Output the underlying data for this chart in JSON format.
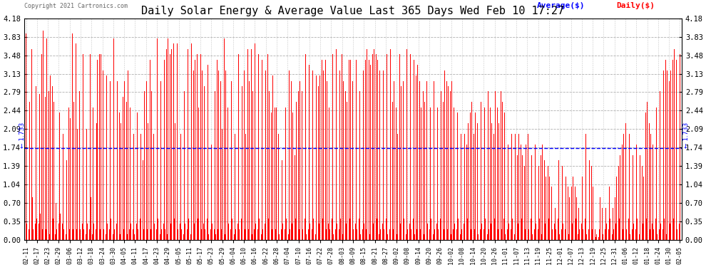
{
  "title": "Daily Solar Energy & Average Value Last 365 Days Wed Feb 10 17:27",
  "copyright": "Copyright 2021 Cartronics.com",
  "average_value": 1.733,
  "average_label": "1.733",
  "y_ticks": [
    0.0,
    0.35,
    0.7,
    1.04,
    1.39,
    1.74,
    2.09,
    2.44,
    2.79,
    3.13,
    3.48,
    3.83,
    4.18
  ],
  "ylim": [
    0.0,
    4.18
  ],
  "bar_color": "#ff0000",
  "avg_line_color": "#0000ff",
  "avg_line_style": "--",
  "background_color": "#ffffff",
  "grid_color": "#b0b0b0",
  "title_fontsize": 11,
  "legend_avg_color": "#0000ff",
  "legend_daily_color": "#ff0000",
  "x_tick_labels": [
    "02-11",
    "02-17",
    "02-23",
    "02-29",
    "03-06",
    "03-12",
    "03-18",
    "03-24",
    "03-30",
    "04-05",
    "04-11",
    "04-17",
    "04-23",
    "04-29",
    "05-05",
    "05-11",
    "05-17",
    "05-23",
    "05-29",
    "06-04",
    "06-10",
    "06-16",
    "06-22",
    "06-28",
    "07-04",
    "07-10",
    "07-16",
    "07-22",
    "07-28",
    "08-03",
    "08-09",
    "08-15",
    "08-21",
    "08-27",
    "09-02",
    "09-08",
    "09-14",
    "09-20",
    "09-26",
    "10-02",
    "10-08",
    "10-14",
    "10-20",
    "10-26",
    "11-01",
    "11-07",
    "11-13",
    "11-19",
    "11-25",
    "12-01",
    "12-07",
    "12-13",
    "12-19",
    "12-25",
    "12-31",
    "01-06",
    "01-12",
    "01-18",
    "01-24",
    "01-30",
    "02-05"
  ],
  "daily_values": [
    3.9,
    0.3,
    3.83,
    0.2,
    2.6,
    0.1,
    3.6,
    0.8,
    0.2,
    3.7,
    0.3,
    2.9,
    0.4,
    3.55,
    0.3,
    2.75,
    0.5,
    3.5,
    0.2,
    3.95,
    0.3,
    2.7,
    0.2,
    3.8,
    0.3,
    2.8,
    0.1,
    3.1,
    0.2,
    2.9,
    0.4,
    2.6,
    0.1,
    0.7,
    0.2,
    2.3,
    0.3,
    2.4,
    0.5,
    1.2,
    0.3,
    2.0,
    0.2,
    3.8,
    0.1,
    1.5,
    0.3,
    2.5,
    0.2,
    2.3,
    0.4,
    3.9,
    0.2,
    2.6,
    0.3,
    3.7,
    0.2,
    2.1,
    0.4,
    2.8,
    0.2,
    3.0,
    0.3,
    3.5,
    0.2,
    4.1,
    0.1,
    2.1,
    0.3,
    3.2,
    0.2,
    3.5,
    0.8,
    0.1,
    2.5,
    0.3,
    3.6,
    0.2,
    2.2,
    3.4,
    0.1,
    3.5,
    0.2,
    3.5,
    0.3,
    3.2,
    0.2,
    1.7,
    0.1,
    3.1,
    0.3,
    3.6,
    0.2,
    3.0,
    0.4,
    1.5,
    0.1,
    3.8,
    0.2,
    3.6,
    0.3,
    3.0,
    0.2,
    2.4,
    0.1,
    2.2,
    0.3,
    2.7,
    0.2,
    3.0,
    0.4,
    2.6,
    0.1,
    3.2,
    0.2,
    2.5,
    0.3,
    3.0,
    0.2,
    2.0,
    0.1,
    3.0,
    0.3,
    2.4,
    0.2,
    2.8,
    0.4,
    2.0,
    0.1,
    1.5,
    0.2,
    2.8,
    0.3,
    3.0,
    0.2,
    2.2,
    0.4,
    3.4,
    0.2,
    2.8,
    0.1,
    2.0,
    0.3,
    3.6,
    0.2,
    3.8,
    0.4,
    2.8,
    0.1,
    3.0,
    0.2,
    2.8,
    0.3,
    3.4,
    0.2,
    3.6,
    0.1,
    3.8,
    0.2,
    3.5,
    0.3,
    3.6,
    0.2,
    3.7,
    0.4,
    2.2,
    0.1,
    3.7,
    0.2,
    3.4,
    0.3,
    2.0,
    0.2,
    1.6,
    0.1,
    2.8,
    0.3,
    3.0,
    0.2,
    3.6,
    0.4,
    3.5,
    0.1,
    3.7,
    0.2,
    3.2,
    0.3,
    3.4,
    0.2,
    3.5,
    0.4,
    2.5,
    0.1,
    3.5,
    0.2,
    3.2,
    0.3,
    2.9,
    0.2,
    3.5,
    0.4,
    3.3,
    0.1,
    3.1,
    0.2,
    1.8,
    0.3,
    2.9,
    0.2,
    2.8,
    0.1,
    3.4,
    0.2,
    3.2,
    0.3,
    3.0,
    0.2,
    2.1,
    0.4,
    3.8,
    0.1,
    3.2,
    0.2,
    2.5,
    0.3,
    3.8,
    0.2,
    3.0,
    0.4,
    2.6,
    0.1,
    2.0,
    0.2,
    2.8,
    0.3,
    3.5,
    0.2,
    3.1,
    0.4,
    2.9,
    0.1,
    3.2,
    0.2,
    2.0,
    0.3,
    3.6,
    0.2,
    3.0,
    0.4,
    3.6,
    0.1,
    2.8,
    0.2,
    3.7,
    0.3,
    3.2,
    0.2,
    3.5,
    0.4,
    3.2,
    0.1,
    3.4,
    0.2,
    3.7,
    0.3,
    3.2,
    0.2,
    3.5,
    0.4,
    2.8,
    0.1,
    2.4,
    0.2,
    3.1,
    0.3,
    2.5,
    0.2,
    2.5,
    0.4,
    2.0,
    0.1,
    2.0,
    0.2,
    1.5,
    0.3,
    2.0,
    0.2,
    2.5,
    0.4,
    2.8,
    0.1,
    3.2,
    0.2,
    3.0,
    0.3,
    2.4,
    0.2,
    1.6,
    0.4,
    2.6,
    0.1,
    2.8,
    0.2,
    3.0,
    0.3,
    2.8,
    0.2,
    3.4,
    0.4,
    3.5,
    0.1,
    3.0,
    0.2,
    3.3,
    0.3,
    3.0,
    0.2,
    3.2,
    0.4,
    3.5,
    0.1,
    3.1,
    0.2,
    2.9,
    0.3,
    3.1,
    0.2,
    3.4,
    0.4,
    3.2,
    0.1,
    3.4,
    0.2,
    3.0,
    0.3,
    2.5,
    0.2,
    3.6,
    0.4,
    3.5,
    0.1,
    3.4,
    0.2,
    3.6,
    0.3,
    3.4,
    0.2,
    3.2,
    0.4,
    3.5,
    0.1,
    3.0,
    0.2,
    2.8,
    0.3,
    2.6,
    0.2,
    3.4,
    0.4,
    3.4,
    0.1,
    3.0,
    0.2,
    3.6,
    0.3,
    3.4,
    0.2,
    3.5,
    0.4,
    2.8,
    0.1,
    3.0,
    0.2,
    3.2,
    0.3,
    3.4,
    0.2,
    3.6,
    0.4,
    3.4,
    0.1,
    3.3,
    0.2,
    3.5,
    0.3,
    3.6,
    0.2,
    3.5,
    0.4,
    3.4,
    0.1,
    3.2,
    0.2,
    3.5,
    0.3,
    3.2,
    0.2,
    3.6,
    0.4,
    3.5,
    0.1,
    3.4,
    0.2,
    3.6,
    0.3,
    2.6,
    0.2,
    3.0,
    0.4,
    2.5,
    0.1,
    2.0,
    0.2,
    3.5,
    0.3,
    2.9,
    0.2,
    3.0,
    0.4,
    2.5,
    0.1,
    3.6,
    0.2,
    3.4,
    0.3,
    3.5,
    0.2,
    3.2,
    0.4,
    3.4,
    0.1,
    3.1,
    0.2,
    3.3,
    0.3,
    3.0,
    0.2,
    2.5,
    0.4,
    2.8,
    0.1,
    2.6,
    0.2,
    3.0,
    0.3,
    2.8,
    0.2,
    2.5,
    0.4,
    2.0,
    0.1,
    3.0,
    0.2,
    2.8,
    0.3,
    2.5,
    0.2,
    3.0,
    0.4,
    2.8,
    0.1,
    2.6,
    0.2,
    3.2,
    0.3,
    3.0,
    0.2,
    2.9,
    0.4,
    2.8,
    0.1,
    3.0,
    0.2,
    2.5,
    0.3,
    2.2,
    0.2,
    2.4,
    0.4,
    2.2,
    0.1,
    2.0,
    0.2,
    2.6,
    0.3,
    2.0,
    0.2,
    1.8,
    0.4,
    2.2,
    0.1,
    2.4,
    0.2,
    2.6,
    0.3,
    2.0,
    0.2,
    2.4,
    0.4,
    2.2,
    0.1,
    2.8,
    0.2,
    2.6,
    0.3,
    2.8,
    0.2,
    2.5,
    0.4,
    3.0,
    0.1,
    2.8,
    0.2,
    2.5,
    0.3,
    2.2,
    0.2,
    2.0,
    0.4,
    2.8,
    0.1,
    2.5,
    0.2,
    2.2,
    0.3,
    2.8,
    0.2,
    2.6,
    0.4,
    2.4,
    0.1,
    2.2,
    0.2,
    1.8,
    0.3,
    1.5,
    0.2,
    2.0,
    0.4,
    2.2,
    0.1,
    2.0,
    0.2,
    1.6,
    0.3,
    2.0,
    0.2,
    1.8,
    0.4,
    1.6,
    0.1,
    1.4,
    0.2,
    1.8,
    0.3,
    2.0,
    0.2,
    1.8,
    0.4,
    1.6,
    0.1,
    1.5,
    0.2,
    1.8,
    0.3,
    1.6,
    0.2,
    1.4,
    0.4,
    1.6,
    0.1,
    1.8,
    0.2,
    1.5,
    0.3,
    1.2,
    0.2,
    1.4,
    0.4,
    1.2,
    0.1,
    1.0,
    0.2,
    0.8,
    0.3,
    0.6,
    0.2,
    1.6,
    0.4,
    1.5,
    0.1,
    1.3,
    0.2,
    1.4,
    0.3,
    1.5,
    0.2,
    1.2,
    0.4,
    1.0,
    0.1,
    0.8,
    0.2,
    1.0,
    0.3,
    1.2,
    0.2,
    1.0,
    0.4,
    0.8,
    0.1,
    0.6,
    0.2,
    1.0,
    0.3,
    1.2,
    0.2,
    1.8,
    0.4,
    2.0,
    0.1,
    1.6,
    0.2,
    1.5,
    0.3,
    1.4,
    0.2,
    1.0,
    0.4,
    0.2,
    0.05,
    0.1,
    0.05,
    0.05,
    0.2,
    0.8,
    0.4,
    0.6,
    0.1,
    0.4,
    0.2,
    0.6,
    0.3,
    0.8,
    0.2,
    1.0,
    0.4,
    0.8,
    0.1,
    0.6,
    0.2,
    0.8,
    0.3,
    1.2,
    0.2,
    1.4,
    0.4,
    1.6,
    0.1,
    1.8,
    0.2,
    2.0,
    0.3,
    2.2,
    0.2,
    2.4,
    0.4,
    2.0,
    0.1,
    1.8,
    0.2,
    1.6,
    0.3,
    2.0,
    0.2,
    1.8,
    0.4,
    2.2,
    0.1,
    1.6,
    0.2,
    1.4,
    0.3,
    1.2,
    0.2,
    2.4,
    0.4,
    2.6,
    0.1,
    2.2,
    0.2,
    2.0,
    0.3,
    1.8,
    0.2,
    2.4,
    0.4,
    2.5,
    0.1,
    2.6,
    0.2,
    2.8,
    0.3,
    3.0,
    0.2,
    3.2,
    0.4,
    3.4,
    0.1,
    3.2,
    0.2,
    3.0,
    0.3,
    3.2,
    0.2,
    3.4,
    0.4,
    3.6,
    0.1,
    3.4,
    0.2,
    3.3,
    0.3,
    3.5
  ]
}
